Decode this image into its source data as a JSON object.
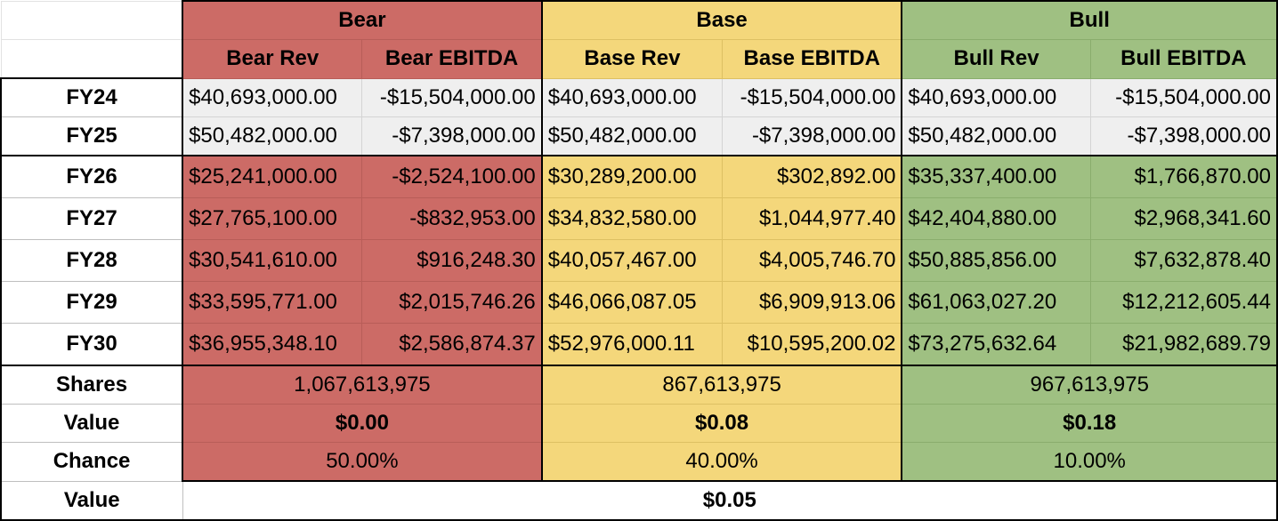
{
  "scenarios": [
    {
      "key": "bear",
      "title": "Bear",
      "rev_label": "Bear Rev",
      "ebitda_label": "Bear EBITDA",
      "color": "#cc6b66",
      "shares": "1,067,613,975",
      "value": "$0.00",
      "chance": "50.00%"
    },
    {
      "key": "base",
      "title": "Base",
      "rev_label": "Base Rev",
      "ebitda_label": "Base EBITDA",
      "color": "#f4d77b",
      "shares": "867,613,975",
      "value": "$0.08",
      "chance": "40.00%"
    },
    {
      "key": "bull",
      "title": "Bull",
      "rev_label": "Bull Rev",
      "ebitda_label": "Bull EBITDA",
      "color": "#9fc082",
      "shares": "967,613,975",
      "value": "$0.18",
      "chance": "10.00%"
    }
  ],
  "years": [
    {
      "label": "FY24",
      "historical": true,
      "cells": [
        "$40,693,000.00",
        "-$15,504,000.00",
        "$40,693,000.00",
        "-$15,504,000.00",
        "$40,693,000.00",
        "-$15,504,000.00"
      ]
    },
    {
      "label": "FY25",
      "historical": true,
      "cells": [
        "$50,482,000.00",
        "-$7,398,000.00",
        "$50,482,000.00",
        "-$7,398,000.00",
        "$50,482,000.00",
        "-$7,398,000.00"
      ]
    },
    {
      "label": "FY26",
      "historical": false,
      "cells": [
        "$25,241,000.00",
        "-$2,524,100.00",
        "$30,289,200.00",
        "$302,892.00",
        "$35,337,400.00",
        "$1,766,870.00"
      ]
    },
    {
      "label": "FY27",
      "historical": false,
      "cells": [
        "$27,765,100.00",
        "-$832,953.00",
        "$34,832,580.00",
        "$1,044,977.40",
        "$42,404,880.00",
        "$2,968,341.60"
      ]
    },
    {
      "label": "FY28",
      "historical": false,
      "cells": [
        "$30,541,610.00",
        "$916,248.30",
        "$40,057,467.00",
        "$4,005,746.70",
        "$50,885,856.00",
        "$7,632,878.40"
      ]
    },
    {
      "label": "FY29",
      "historical": false,
      "cells": [
        "$33,595,771.00",
        "$2,015,746.26",
        "$46,066,087.05",
        "$6,909,913.06",
        "$61,063,027.20",
        "$12,212,605.44"
      ]
    },
    {
      "label": "FY30",
      "historical": false,
      "cells": [
        "$36,955,348.10",
        "$2,586,874.37",
        "$52,976,000.11",
        "$10,595,200.02",
        "$73,275,632.64",
        "$21,982,689.79"
      ]
    }
  ],
  "labels": {
    "shares": "Shares",
    "value": "Value",
    "chance": "Chance",
    "weighted_value": "Value"
  },
  "weighted_value": "$0.05"
}
